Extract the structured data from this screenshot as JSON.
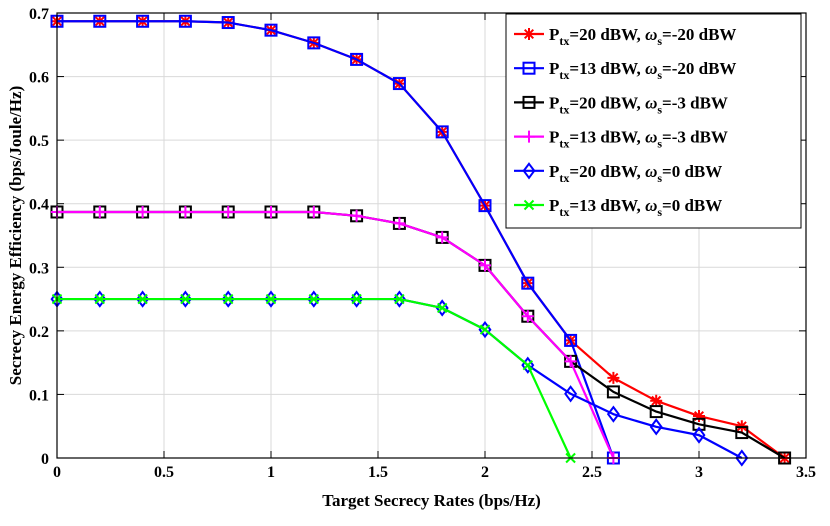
{
  "chart_data": {
    "type": "line",
    "xlabel": "Target Secrecy Rates (bps/Hz)",
    "ylabel": "Secrecy Energy Efficiency (bps/Joule/Hz)",
    "xlim": [
      0,
      3.5
    ],
    "ylim": [
      0,
      0.7
    ],
    "xticks": [
      0,
      0.5,
      1,
      1.5,
      2,
      2.5,
      3,
      3.5
    ],
    "xtick_labels": [
      "0",
      "0.5",
      "1",
      "1.5",
      "2",
      "2.5",
      "3",
      "3.5"
    ],
    "yticks": [
      0,
      0.1,
      0.2,
      0.3,
      0.4,
      0.5,
      0.6,
      0.7
    ],
    "ytick_labels": [
      "0",
      "0.1",
      "0.2",
      "0.3",
      "0.4",
      "0.5",
      "0.6",
      "0.7"
    ],
    "grid": true,
    "legend_position": "top-right",
    "series": [
      {
        "name": "Ptx=20 dBW, ωs=-20 dBW",
        "legend": {
          "p": "P",
          "tx": "tx",
          "a": "=20 dBW, ",
          "omega": "ω",
          "s": "s",
          "b": "=-20 dBW"
        },
        "color": "#ff0000",
        "marker": "star",
        "marker_color": "#ff0000",
        "x": [
          0,
          0.2,
          0.4,
          0.6,
          0.8,
          1.0,
          1.2,
          1.4,
          1.6,
          1.8,
          2.0,
          2.2,
          2.4,
          2.6,
          2.8,
          3.0,
          3.2,
          3.4
        ],
        "y": [
          0.687,
          0.687,
          0.687,
          0.687,
          0.685,
          0.673,
          0.653,
          0.627,
          0.589,
          0.513,
          0.397,
          0.275,
          0.185,
          0.126,
          0.09,
          0.066,
          0.05,
          0.0
        ]
      },
      {
        "name": "Ptx=13 dBW, ωs=-20 dBW",
        "legend": {
          "p": "P",
          "tx": "tx",
          "a": "=13 dBW, ",
          "omega": "ω",
          "s": "s",
          "b": "=-20 dBW"
        },
        "color": "#0000ff",
        "marker": "square",
        "marker_color": "#0000ff",
        "x": [
          0,
          0.2,
          0.4,
          0.6,
          0.8,
          1.0,
          1.2,
          1.4,
          1.6,
          1.8,
          2.0,
          2.2,
          2.4,
          2.6
        ],
        "y": [
          0.687,
          0.687,
          0.687,
          0.687,
          0.685,
          0.673,
          0.653,
          0.627,
          0.589,
          0.513,
          0.397,
          0.275,
          0.185,
          0.0
        ]
      },
      {
        "name": "Ptx=20 dBW, ωs=-3 dBW",
        "legend": {
          "p": "P",
          "tx": "tx",
          "a": "=20 dBW, ",
          "omega": "ω",
          "s": "s",
          "b": "=-3 dBW"
        },
        "color": "#000000",
        "marker": "square",
        "marker_color": "#000000",
        "x": [
          0,
          0.2,
          0.4,
          0.6,
          0.8,
          1.0,
          1.2,
          1.4,
          1.6,
          1.8,
          2.0,
          2.2,
          2.4,
          2.6,
          2.8,
          3.0,
          3.2,
          3.4
        ],
        "y": [
          0.387,
          0.387,
          0.387,
          0.387,
          0.387,
          0.387,
          0.387,
          0.381,
          0.369,
          0.347,
          0.303,
          0.223,
          0.152,
          0.104,
          0.073,
          0.053,
          0.04,
          0.0
        ]
      },
      {
        "name": "Ptx=13 dBW, ωs=-3 dBW",
        "legend": {
          "p": "P",
          "tx": "tx",
          "a": "=13 dBW, ",
          "omega": "ω",
          "s": "s",
          "b": "=-3 dBW"
        },
        "color": "#ff00ff",
        "marker": "plus",
        "marker_color": "#ff00ff",
        "x": [
          0,
          0.2,
          0.4,
          0.6,
          0.8,
          1.0,
          1.2,
          1.4,
          1.6,
          1.8,
          2.0,
          2.2,
          2.4,
          2.6
        ],
        "y": [
          0.387,
          0.387,
          0.387,
          0.387,
          0.387,
          0.387,
          0.387,
          0.381,
          0.369,
          0.347,
          0.303,
          0.223,
          0.152,
          0.0
        ]
      },
      {
        "name": "Ptx=20 dBW, ωs=0 dBW",
        "legend": {
          "p": "P",
          "tx": "tx",
          "a": "=20 dBW, ",
          "omega": "ω",
          "s": "s",
          "b": "=0 dBW"
        },
        "color": "#0000ff",
        "marker": "diamond",
        "marker_color": "#0000ff",
        "x": [
          0,
          0.2,
          0.4,
          0.6,
          0.8,
          1.0,
          1.2,
          1.4,
          1.6,
          1.8,
          2.0,
          2.2,
          2.4,
          2.6,
          2.8,
          3.0,
          3.2
        ],
        "y": [
          0.25,
          0.25,
          0.25,
          0.25,
          0.25,
          0.25,
          0.25,
          0.25,
          0.25,
          0.236,
          0.202,
          0.146,
          0.101,
          0.069,
          0.049,
          0.036,
          0.0
        ]
      },
      {
        "name": "Ptx=13 dBW, ωs=0 dBW",
        "legend": {
          "p": "P",
          "tx": "tx",
          "a": "=13 dBW, ",
          "omega": "ω",
          "s": "s",
          "b": "=0 dBW"
        },
        "color": "#00ff00",
        "marker": "x",
        "marker_color": "#00ff00",
        "x": [
          0,
          0.2,
          0.4,
          0.6,
          0.8,
          1.0,
          1.2,
          1.4,
          1.6,
          1.8,
          2.0,
          2.2,
          2.4
        ],
        "y": [
          0.25,
          0.25,
          0.25,
          0.25,
          0.25,
          0.25,
          0.25,
          0.25,
          0.25,
          0.236,
          0.202,
          0.146,
          0.0
        ]
      }
    ]
  }
}
